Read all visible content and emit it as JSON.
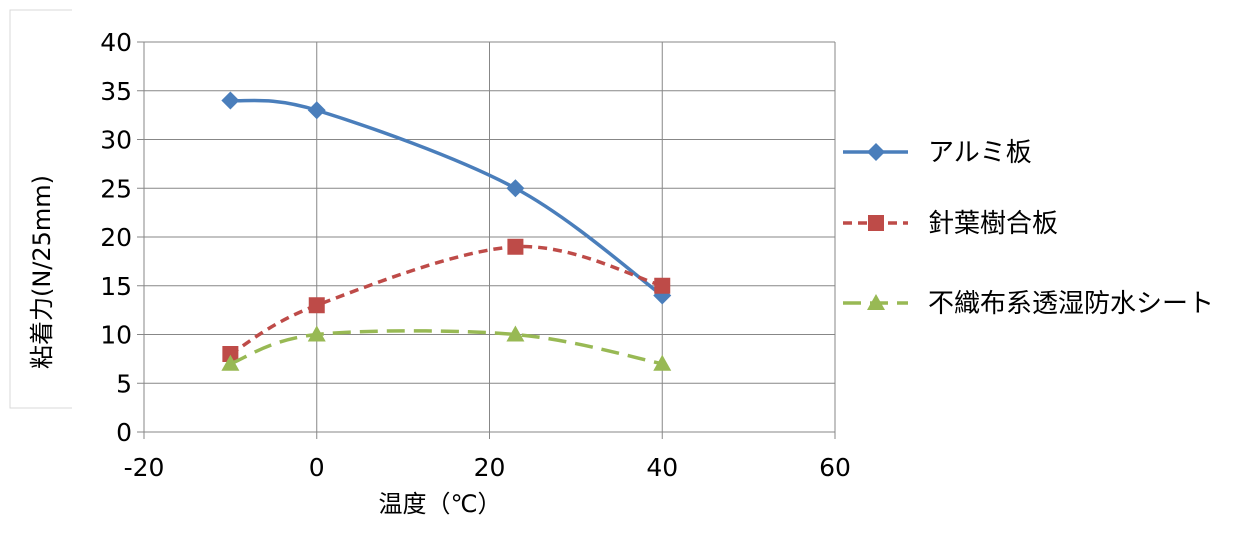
{
  "chart_data": {
    "type": "scatter",
    "xlabel": "温度（℃）",
    "ylabel": "粘着力(N/25mm)",
    "xlim": [
      -20,
      60
    ],
    "ylim": [
      0,
      40
    ],
    "xticks": [
      -20,
      0,
      20,
      40,
      60
    ],
    "yticks": [
      0,
      5,
      10,
      15,
      20,
      25,
      30,
      35,
      40
    ],
    "x_tick_labels": [
      "-20",
      "0",
      "20",
      "40",
      "60"
    ],
    "y_tick_labels": [
      "0",
      "5",
      "10",
      "15",
      "20",
      "25",
      "30",
      "35",
      "40"
    ],
    "grid": true,
    "smooth_lines": true,
    "legend_position": "right",
    "series": [
      {
        "name": "アルミ板",
        "color": "#4a7ebb",
        "marker": "diamond",
        "dash": "solid",
        "x": [
          -10,
          0,
          23,
          40
        ],
        "y": [
          34,
          33,
          25,
          14
        ]
      },
      {
        "name": "針葉樹合板",
        "color": "#be4b48",
        "marker": "square",
        "dash": "dashed",
        "x": [
          -10,
          0,
          23,
          40
        ],
        "y": [
          8,
          13,
          19,
          15
        ]
      },
      {
        "name": "不織布系透湿防水シート",
        "color": "#98b954",
        "marker": "triangle",
        "dash": "long-dashed",
        "x": [
          -10,
          0,
          23,
          40
        ],
        "y": [
          7,
          10,
          10,
          7
        ]
      }
    ]
  }
}
